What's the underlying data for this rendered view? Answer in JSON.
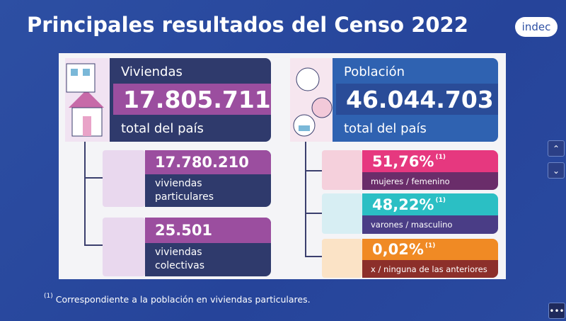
{
  "header": {
    "title": "Principales resultados del Censo 2022",
    "logo": "indec"
  },
  "viviendas": {
    "label": "Viviendas",
    "value": "17.805.711",
    "caption": "total del país",
    "items": [
      {
        "value": "17.780.210",
        "caption": "viviendas particulares"
      },
      {
        "value": "25.501",
        "caption": "viviendas colectivas"
      }
    ]
  },
  "poblacion": {
    "label": "Población",
    "value": "46.044.703",
    "caption": "total del país",
    "items": [
      {
        "value": "51,76%",
        "note": "(1)",
        "caption": "mujeres / femenino"
      },
      {
        "value": "48,22%",
        "note": "(1)",
        "caption": "varones / masculino"
      },
      {
        "value": "0,02%",
        "note": "(1)",
        "caption": "x / ninguna de las anteriores"
      }
    ]
  },
  "footnote": {
    "note": "(1)",
    "text": "Correspondiente a la población en viviendas particulares."
  }
}
